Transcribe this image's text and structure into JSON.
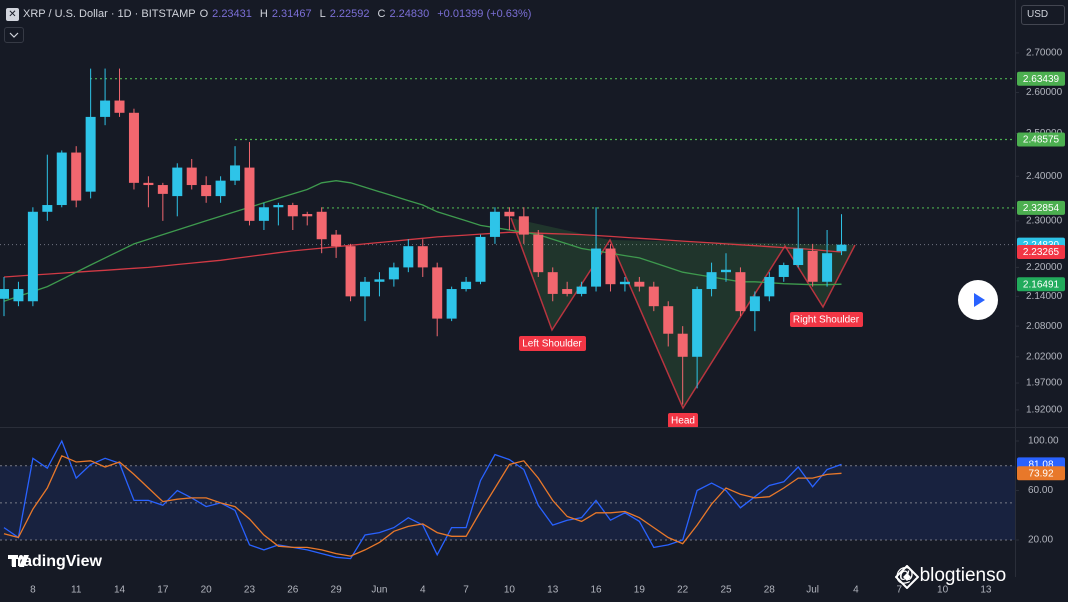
{
  "ui": {
    "currency": "USD",
    "brand": "TradingView",
    "watermark": "@ blogtienso"
  },
  "chart_data": [
    {
      "type": "candlestick",
      "title": "XRP / U.S. Dollar · 1D · BITSTAMP",
      "ohlc_keys": [
        "O",
        "H",
        "L",
        "C"
      ],
      "change": "+0.01399 (+0.63%)",
      "log": true,
      "up_color": "#2ec4e8",
      "down_color": "#f2676f",
      "categories": [
        null,
        null,
        "8",
        null,
        null,
        "11",
        null,
        null,
        "14",
        null,
        null,
        "17",
        null,
        null,
        "20",
        null,
        null,
        "23",
        null,
        null,
        "26",
        null,
        null,
        "29",
        null,
        null,
        "Jun",
        null,
        null,
        "4",
        null,
        null,
        "7",
        null,
        null,
        "10",
        null,
        null,
        "13",
        null,
        null,
        "16",
        null,
        null,
        "19",
        null,
        null,
        "22",
        null,
        null,
        "25",
        null,
        null,
        "28",
        null,
        null,
        "Jul",
        null,
        null,
        "4",
        null,
        null,
        "7",
        null,
        null,
        "10",
        null,
        null,
        "13",
        null,
        null
      ],
      "open": [
        2.135,
        2.13,
        2.13,
        2.32,
        2.335,
        2.455,
        2.365,
        2.54,
        2.58,
        2.55,
        2.385,
        2.38,
        2.355,
        2.42,
        2.38,
        2.355,
        2.39,
        2.42,
        2.3,
        2.33,
        2.335,
        2.315,
        2.32,
        2.27,
        2.245,
        2.14,
        2.17,
        2.175,
        2.2,
        2.245,
        2.2,
        2.095,
        2.155,
        2.17,
        2.265,
        2.32,
        2.31,
        2.27,
        2.19,
        2.155,
        2.145,
        2.16,
        2.24,
        2.165,
        2.17,
        2.16,
        2.12,
        2.065,
        2.02,
        2.155,
        2.19,
        2.19,
        2.11,
        2.14,
        2.18,
        2.205,
        2.235,
        2.17,
        2.23431,
        null,
        null,
        null,
        null,
        null,
        null,
        null,
        null,
        null,
        null,
        null,
        null
      ],
      "high": [
        2.18,
        2.17,
        2.33,
        2.45,
        2.46,
        2.47,
        2.66,
        2.66,
        2.66,
        2.56,
        2.4,
        2.385,
        2.43,
        2.44,
        2.4,
        2.4,
        2.47,
        2.48,
        2.34,
        2.34,
        2.34,
        2.32,
        2.33,
        2.28,
        2.25,
        2.18,
        2.19,
        2.21,
        2.26,
        2.26,
        2.21,
        2.16,
        2.18,
        2.27,
        2.33,
        2.33,
        2.33,
        2.28,
        2.2,
        2.17,
        2.17,
        2.33,
        2.25,
        2.18,
        2.18,
        2.17,
        2.13,
        2.08,
        2.16,
        2.21,
        2.23,
        2.2,
        2.15,
        2.19,
        2.21,
        2.33,
        2.25,
        2.28,
        2.31467,
        null,
        null,
        null,
        null,
        null,
        null,
        null,
        null,
        null,
        null,
        null,
        null
      ],
      "low": [
        2.1,
        2.12,
        2.12,
        2.3,
        2.33,
        2.33,
        2.35,
        2.52,
        2.54,
        2.37,
        2.33,
        2.3,
        2.31,
        2.37,
        2.34,
        2.34,
        2.38,
        2.29,
        2.28,
        2.29,
        2.28,
        2.29,
        2.23,
        2.22,
        2.13,
        2.09,
        2.14,
        2.16,
        2.19,
        2.18,
        2.06,
        2.09,
        2.15,
        2.165,
        2.25,
        2.28,
        2.25,
        2.18,
        2.13,
        2.14,
        2.14,
        2.15,
        2.15,
        2.15,
        2.15,
        2.11,
        2.04,
        1.93,
        1.96,
        2.14,
        2.17,
        2.1,
        2.07,
        2.13,
        2.17,
        2.2,
        2.16,
        2.16,
        2.22592,
        null,
        null,
        null,
        null,
        null,
        null,
        null,
        null,
        null,
        null,
        null,
        null
      ],
      "close": [
        2.155,
        2.155,
        2.32,
        2.335,
        2.455,
        2.345,
        2.54,
        2.58,
        2.55,
        2.385,
        2.38,
        2.36,
        2.42,
        2.38,
        2.355,
        2.39,
        2.425,
        2.3,
        2.33,
        2.335,
        2.31,
        2.31,
        2.26,
        2.245,
        2.14,
        2.17,
        2.175,
        2.2,
        2.245,
        2.2,
        2.095,
        2.155,
        2.17,
        2.265,
        2.32,
        2.31,
        2.27,
        2.19,
        2.145,
        2.145,
        2.16,
        2.24,
        2.165,
        2.17,
        2.16,
        2.12,
        2.065,
        2.02,
        2.155,
        2.19,
        2.195,
        2.11,
        2.14,
        2.18,
        2.205,
        2.24,
        2.17,
        2.23,
        2.2483,
        null,
        null,
        null,
        null,
        null,
        null,
        null,
        null,
        null,
        null,
        null,
        null
      ],
      "series": [
        {
          "color": "#d13a45",
          "label_color": "#f23645",
          "values": [
            2.18,
            2.182,
            2.184,
            2.186,
            2.188,
            2.19,
            2.192,
            2.194,
            2.196,
            2.198,
            2.2,
            2.203,
            2.206,
            2.209,
            2.212,
            2.215,
            2.219,
            2.223,
            2.227,
            2.231,
            2.235,
            2.238,
            2.241,
            2.244,
            2.247,
            2.25,
            2.253,
            2.256,
            2.259,
            2.262,
            2.265,
            2.267,
            2.269,
            2.271,
            2.273,
            2.275,
            2.274,
            2.273,
            2.272,
            2.271,
            2.27,
            2.268,
            2.266,
            2.264,
            2.262,
            2.26,
            2.258,
            2.256,
            2.254,
            2.252,
            2.25,
            2.248,
            2.246,
            2.244,
            2.242,
            2.24,
            2.238,
            2.235,
            2.23265,
            null,
            null,
            null,
            null,
            null,
            null,
            null,
            null,
            null,
            null,
            null,
            null
          ]
        },
        {
          "color": "#3e9a4e",
          "label_color": "#22ab5c",
          "values": [
            2.13,
            2.14,
            2.15,
            2.16,
            2.175,
            2.19,
            2.205,
            2.22,
            2.235,
            2.25,
            2.26,
            2.27,
            2.28,
            2.29,
            2.3,
            2.31,
            2.32,
            2.33,
            2.34,
            2.35,
            2.36,
            2.37,
            2.385,
            2.39,
            2.385,
            2.375,
            2.365,
            2.355,
            2.345,
            2.335,
            2.32,
            2.31,
            2.3,
            2.29,
            2.285,
            2.28,
            2.275,
            2.27,
            2.26,
            2.25,
            2.24,
            2.235,
            2.23,
            2.225,
            2.22,
            2.21,
            2.2,
            2.19,
            2.185,
            2.18,
            2.175,
            2.17,
            2.17,
            2.168,
            2.166,
            2.165,
            2.164,
            2.164,
            2.16491,
            null,
            null,
            null,
            null,
            null,
            null,
            null,
            null,
            null,
            null,
            null,
            null
          ]
        }
      ],
      "levels": [
        {
          "value": 2.63439,
          "color": "#4caf50"
        },
        {
          "value": 2.48575,
          "color": "#4caf50"
        },
        {
          "value": 2.32854,
          "color": "#4caf50"
        }
      ],
      "last_price": {
        "value": 2.2483,
        "label": "2.24830",
        "color": "#2ec4e8"
      },
      "pattern_labels": [
        "Left Shoulder",
        "Head",
        "Right Shoulder"
      ],
      "ylim": [
        1.889,
        2.84
      ],
      "yticks": [
        {
          "value": 2.7,
          "label": "2.70000"
        },
        {
          "value": 2.6,
          "label": "2.60000"
        },
        {
          "value": 2.5,
          "label": "2.50000"
        },
        {
          "value": 2.4,
          "label": "2.40000"
        },
        {
          "value": 2.3,
          "label": "2.30000"
        },
        {
          "value": 2.2,
          "label": "2.20000"
        },
        {
          "value": 2.14,
          "label": "2.14000"
        },
        {
          "value": 2.08,
          "label": "2.08000"
        },
        {
          "value": 2.02,
          "label": "2.02000"
        },
        {
          "value": 1.97,
          "label": "1.97000"
        },
        {
          "value": 1.92,
          "label": "1.92000"
        }
      ]
    },
    {
      "type": "line",
      "ylim": [
        -9.9,
        110.5
      ],
      "yticks": [
        {
          "value": 100,
          "label": "100.00"
        },
        {
          "value": 60,
          "label": "60.00"
        },
        {
          "value": 20,
          "label": "20.00"
        }
      ],
      "band_lines": [
        80,
        50,
        20
      ],
      "series": [
        {
          "color": "#2962ff",
          "values": [
            30,
            22,
            86,
            78,
            100,
            70,
            81,
            86,
            82,
            52,
            52,
            48,
            60,
            54,
            47,
            50,
            44,
            16,
            12,
            16,
            14,
            12,
            9,
            6,
            5,
            24,
            26,
            30,
            38,
            32,
            8,
            30,
            30,
            68,
            89,
            85,
            77,
            48,
            32,
            36,
            38,
            52,
            36,
            42,
            35,
            14,
            16,
            20,
            60,
            66,
            60,
            46,
            55,
            64,
            67,
            79,
            63,
            77,
            81.08,
            null,
            null,
            null,
            null,
            null,
            null,
            null,
            null,
            null,
            null,
            null,
            null
          ]
        },
        {
          "color": "#e8782a",
          "values": [
            25,
            22,
            45,
            62,
            88,
            83,
            84,
            79,
            83,
            73,
            62,
            51,
            53,
            54,
            54,
            50,
            47,
            37,
            24,
            15,
            14,
            14,
            12,
            9,
            7,
            12,
            18,
            27,
            31,
            33,
            26,
            23,
            23,
            43,
            62,
            81,
            84,
            70,
            52,
            39,
            35,
            42,
            42,
            43,
            38,
            30,
            22,
            17,
            32,
            49,
            62,
            57,
            54,
            55,
            62,
            70,
            70,
            73,
            73.92,
            null,
            null,
            null,
            null,
            null,
            null,
            null,
            null,
            null,
            null,
            null,
            null
          ]
        }
      ]
    }
  ]
}
